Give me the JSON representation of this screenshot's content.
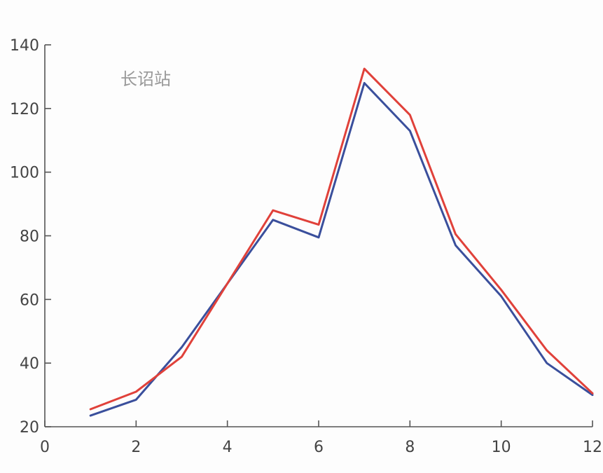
{
  "chart_data": {
    "type": "line",
    "title": "",
    "xlabel": "",
    "ylabel": "",
    "annotation": "长诏站",
    "xlim": [
      0,
      12
    ],
    "ylim": [
      20,
      140
    ],
    "x_ticks": [
      0,
      2,
      4,
      6,
      8,
      10,
      12
    ],
    "y_ticks": [
      20,
      40,
      60,
      80,
      100,
      120,
      140
    ],
    "x": [
      1,
      2,
      3,
      4,
      5,
      6,
      7,
      8,
      9,
      10,
      11,
      12
    ],
    "grid": false,
    "series": [
      {
        "color": "#3a4f9c",
        "values": [
          23.5,
          28.5,
          45,
          65,
          85,
          79.5,
          128,
          113,
          77,
          61,
          40,
          30
        ]
      },
      {
        "color": "#e0413a",
        "values": [
          25.5,
          31,
          42,
          65,
          88,
          83.5,
          132.5,
          118,
          80.5,
          63,
          44,
          30.5
        ]
      }
    ]
  }
}
